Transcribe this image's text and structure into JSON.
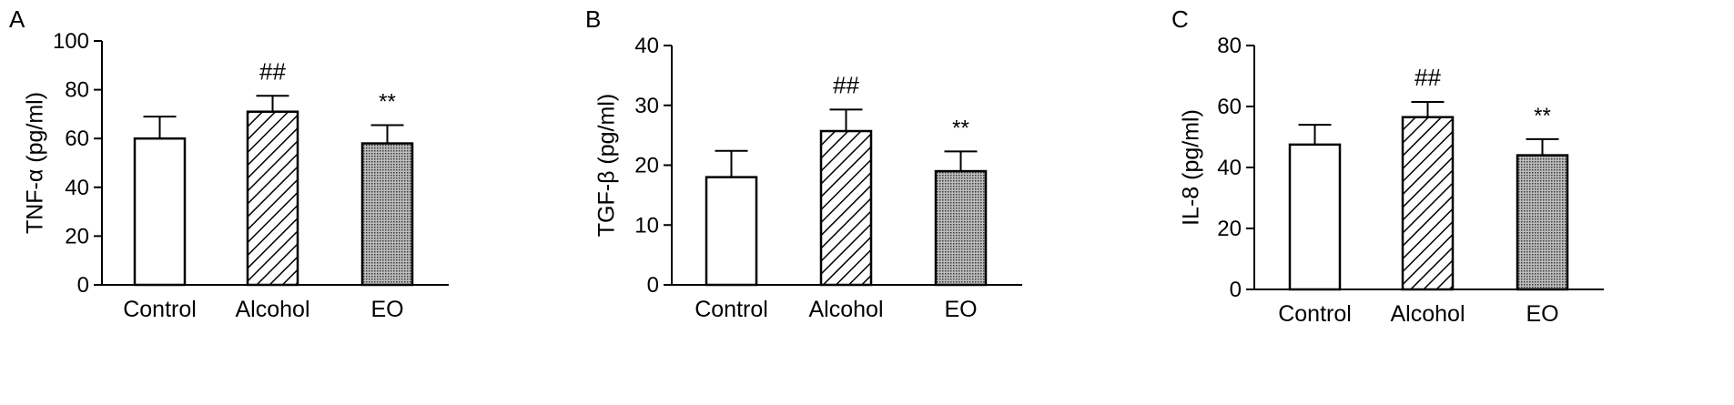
{
  "panels": [
    {
      "label": "A",
      "chart_data": {
        "type": "bar",
        "categories": [
          "Control",
          "Alcohol",
          "EO"
        ],
        "values": [
          60,
          71,
          58
        ],
        "errors": [
          9,
          6.5,
          7.5
        ],
        "significance": [
          "",
          "##",
          "**"
        ],
        "patterns": [
          "white",
          "hatch",
          "dots"
        ],
        "ylabel": "TNF-α (pg/ml)",
        "xlabel": "",
        "ylim": [
          0,
          100
        ],
        "yticks": [
          0,
          20,
          40,
          60,
          80,
          100
        ],
        "grid": false
      }
    },
    {
      "label": "B",
      "chart_data": {
        "type": "bar",
        "categories": [
          "Control",
          "Alcohol",
          "EO"
        ],
        "values": [
          18,
          25.7,
          19
        ],
        "errors": [
          4.4,
          3.6,
          3.3
        ],
        "significance": [
          "",
          "##",
          "**"
        ],
        "patterns": [
          "white",
          "hatch",
          "dots"
        ],
        "ylabel": "TGF-β (pg/ml)",
        "xlabel": "",
        "ylim": [
          0,
          40
        ],
        "yticks": [
          0,
          10,
          20,
          30,
          40
        ],
        "grid": false
      }
    },
    {
      "label": "C",
      "chart_data": {
        "type": "bar",
        "categories": [
          "Control",
          "Alcohol",
          "EO"
        ],
        "values": [
          47.5,
          56.5,
          44
        ],
        "errors": [
          6.5,
          5,
          5.3
        ],
        "significance": [
          "",
          "##",
          "**"
        ],
        "patterns": [
          "white",
          "hatch",
          "dots"
        ],
        "ylabel": "IL-8 (pg/ml)",
        "xlabel": "",
        "ylim": [
          0,
          80
        ],
        "yticks": [
          0,
          20,
          40,
          60,
          80
        ],
        "grid": false
      }
    }
  ]
}
